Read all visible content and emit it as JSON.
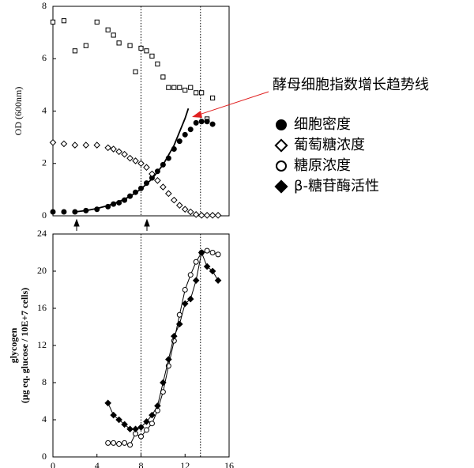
{
  "chart_data": [
    {
      "type": "scatter",
      "ylabel": "OD (600nm)",
      "xlim": [
        0,
        16
      ],
      "ylim": [
        0,
        8
      ],
      "yticks": [
        0,
        2,
        4,
        6,
        8
      ],
      "vlines": [
        8,
        13.4
      ],
      "annotation": "酵母细胞指数增长趋势线",
      "annotation_color": "#e02020",
      "series": [
        {
          "marker": "square-open",
          "color": "#000000",
          "x": [
            0,
            1,
            2,
            3,
            4,
            5,
            5.5,
            6,
            7,
            7.5,
            8,
            8.5,
            9,
            9.5,
            10,
            10.5,
            11,
            11.5,
            12,
            12.5,
            13,
            13.5,
            14,
            14.5
          ],
          "values": [
            7.4,
            7.45,
            6.3,
            6.5,
            7.4,
            7.1,
            6.9,
            6.6,
            6.5,
            5.5,
            6.4,
            6.3,
            6.1,
            5.8,
            5.3,
            4.9,
            4.9,
            4.9,
            4.8,
            4.9,
            4.7,
            4.7,
            3.7,
            4.5
          ]
        },
        {
          "name": "细胞密度",
          "marker": "circle-filled",
          "color": "#000000",
          "x": [
            0,
            1,
            2,
            3,
            4,
            5,
            5.5,
            6,
            6.5,
            7,
            7.5,
            8,
            8.5,
            9,
            9.5,
            10,
            10.5,
            11,
            11.5,
            12,
            12.5,
            13,
            13.5,
            14,
            14.5
          ],
          "values": [
            0.15,
            0.15,
            0.15,
            0.2,
            0.25,
            0.35,
            0.45,
            0.5,
            0.6,
            0.75,
            0.9,
            1.05,
            1.25,
            1.45,
            1.7,
            1.95,
            2.2,
            2.55,
            2.85,
            3.1,
            3.3,
            3.55,
            3.6,
            3.6,
            3.5
          ]
        },
        {
          "name": "葡萄糖浓度",
          "marker": "diamond-open",
          "color": "#000000",
          "x": [
            0,
            1,
            2,
            3,
            4,
            5,
            5.5,
            6,
            6.5,
            7,
            7.5,
            8,
            8.5,
            9,
            9.5,
            10,
            10.5,
            11,
            11.5,
            12,
            12.5,
            13,
            13.5,
            14,
            14.5,
            15
          ],
          "values": [
            2.8,
            2.75,
            2.7,
            2.7,
            2.7,
            2.6,
            2.55,
            2.45,
            2.35,
            2.2,
            2.1,
            2.0,
            1.85,
            1.6,
            1.35,
            1.1,
            0.85,
            0.6,
            0.4,
            0.25,
            0.15,
            0.05,
            0.02,
            0.02,
            0.02,
            0.02
          ]
        },
        {
          "marker": "none",
          "line": true,
          "color": "#000000",
          "x": [
            2,
            3,
            4,
            5,
            6,
            7,
            8,
            9,
            10,
            11,
            12,
            12.3
          ],
          "values": [
            0.15,
            0.2,
            0.28,
            0.39,
            0.54,
            0.74,
            1.02,
            1.41,
            1.95,
            2.69,
            3.72,
            4.1
          ]
        }
      ]
    },
    {
      "type": "scatter",
      "ylabel": [
        "glycogen",
        "(μg eq. glucose / 10E+7 cells)"
      ],
      "xlim": [
        0,
        16
      ],
      "xticks": [
        0,
        4,
        8,
        12,
        16
      ],
      "ylim": [
        0,
        24
      ],
      "yticks": [
        0,
        4,
        8,
        12,
        16,
        20,
        24
      ],
      "vlines": [
        8,
        13.4
      ],
      "series": [
        {
          "name": "糖原浓度",
          "marker": "circle-open",
          "line": true,
          "color": "#000000",
          "x": [
            5,
            5.5,
            6,
            6.5,
            7,
            7.5,
            8,
            8.5,
            9,
            9.5,
            10,
            10.5,
            11,
            11.5,
            12,
            12.5,
            13,
            13.5,
            14,
            14.5,
            15
          ],
          "values": [
            1.5,
            1.5,
            1.4,
            1.5,
            1.3,
            2.5,
            2.2,
            2.9,
            3.6,
            5,
            7,
            9.8,
            12.5,
            15.3,
            18,
            19.6,
            21,
            22,
            22.2,
            22,
            21.8
          ]
        },
        {
          "name": "β-糖苷酶活性",
          "marker": "diamond-filled",
          "line": true,
          "color": "#000000",
          "x": [
            5,
            5.5,
            6,
            6.5,
            7,
            7.5,
            8,
            8.5,
            9,
            9.5,
            10,
            10.5,
            11,
            11.5,
            12,
            12.5,
            13,
            13.5,
            14,
            14.5,
            15
          ],
          "values": [
            5.8,
            4.5,
            4,
            3.5,
            3,
            3,
            3.2,
            3.8,
            4.5,
            5.5,
            8,
            10.5,
            13,
            14.3,
            16.5,
            17,
            19,
            22,
            20.5,
            20,
            19
          ]
        }
      ]
    }
  ]
}
